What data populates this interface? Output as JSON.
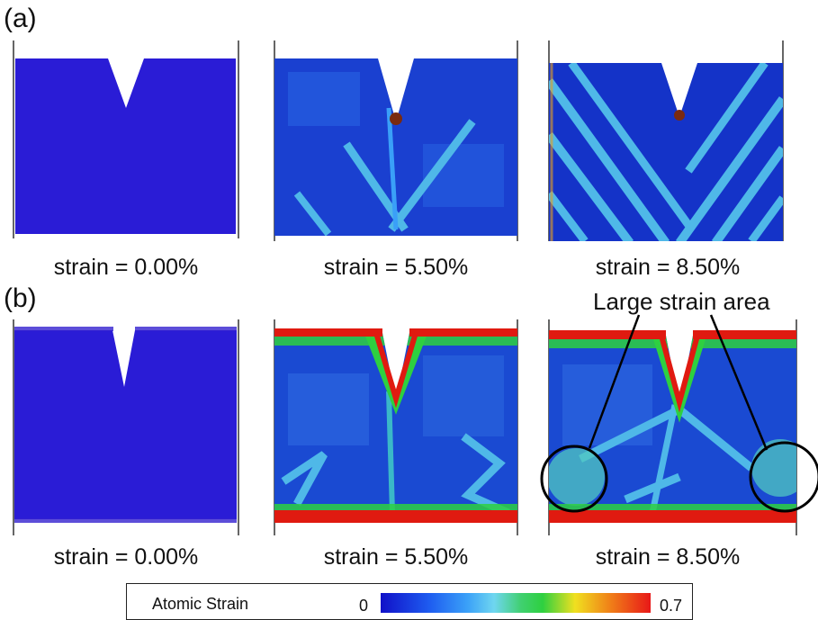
{
  "panel_labels": {
    "a": "(a)",
    "b": "(b)"
  },
  "captions": {
    "a": [
      "strain = 0.00%",
      "strain = 5.50%",
      "strain = 8.50%"
    ],
    "b": [
      "strain = 0.00%",
      "strain = 5.50%",
      "strain = 8.50%"
    ]
  },
  "annotation": "Large strain area",
  "legend": {
    "title": "Atomic Strain",
    "min": "0",
    "max": "0.7",
    "colors": [
      "#1010c8",
      "#1e5cf0",
      "#3aa0f8",
      "#6fd6f0",
      "#2ed040",
      "#f0e020",
      "#f08018",
      "#e81818"
    ]
  },
  "colors": {
    "base_blue": "#2a1cd6",
    "deep_blue": "#1433c8",
    "band": "#4fb8e8",
    "hot": "#e01a10"
  }
}
